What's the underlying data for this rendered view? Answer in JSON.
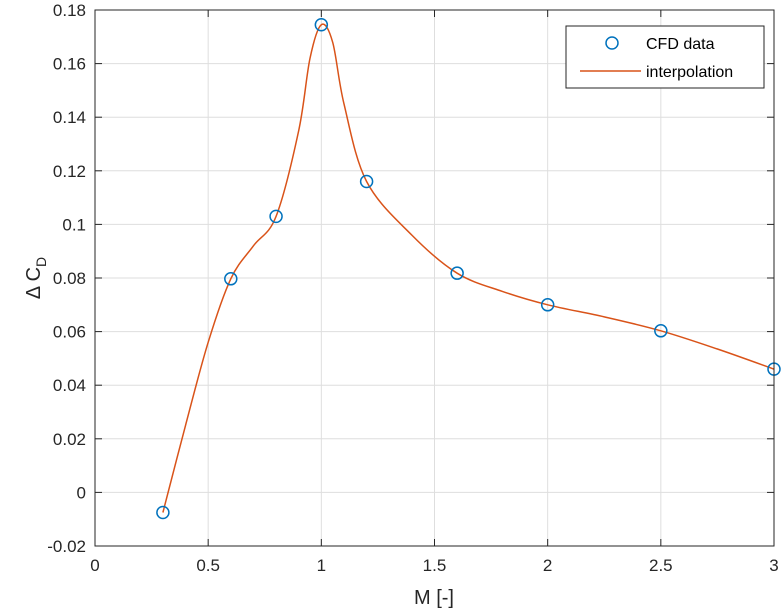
{
  "chart_data": {
    "type": "line",
    "xlabel": "M [-]",
    "ylabel": "Δ C",
    "ylabel_subscript": "D",
    "xlim": [
      0,
      3
    ],
    "ylim": [
      -0.02,
      0.18
    ],
    "xticks": [
      0,
      0.5,
      1,
      1.5,
      2,
      2.5,
      3
    ],
    "xtick_labels": [
      "0",
      "0.5",
      "1",
      "1.5",
      "2",
      "2.5",
      "3"
    ],
    "yticks": [
      -0.02,
      0,
      0.02,
      0.04,
      0.06,
      0.08,
      0.1,
      0.12,
      0.14,
      0.16,
      0.18
    ],
    "ytick_labels": [
      "-0.02",
      "0",
      "0.02",
      "0.04",
      "0.06",
      "0.08",
      "0.1",
      "0.12",
      "0.14",
      "0.16",
      "0.18"
    ],
    "grid": true,
    "legend_position": "top-right",
    "series": [
      {
        "name": "CFD data",
        "type": "scatter",
        "marker": "circle",
        "color": "#0072BD",
        "x": [
          0.3,
          0.6,
          0.8,
          1.0,
          1.2,
          1.6,
          2.0,
          2.5,
          3.0
        ],
        "y": [
          -0.0075,
          0.0797,
          0.103,
          0.1745,
          0.116,
          0.0818,
          0.07,
          0.0603,
          0.046
        ]
      },
      {
        "name": "interpolation",
        "type": "line",
        "color": "#D95319",
        "x": [
          0.3,
          0.4,
          0.5,
          0.6,
          0.7,
          0.8,
          0.9,
          0.95,
          1.0,
          1.05,
          1.1,
          1.2,
          1.4,
          1.6,
          1.8,
          2.0,
          2.25,
          2.5,
          2.75,
          3.0
        ],
        "y": [
          -0.0075,
          0.025,
          0.056,
          0.0797,
          0.092,
          0.103,
          0.135,
          0.162,
          0.1745,
          0.168,
          0.145,
          0.116,
          0.096,
          0.0818,
          0.075,
          0.07,
          0.0655,
          0.0603,
          0.0535,
          0.046
        ]
      }
    ]
  }
}
